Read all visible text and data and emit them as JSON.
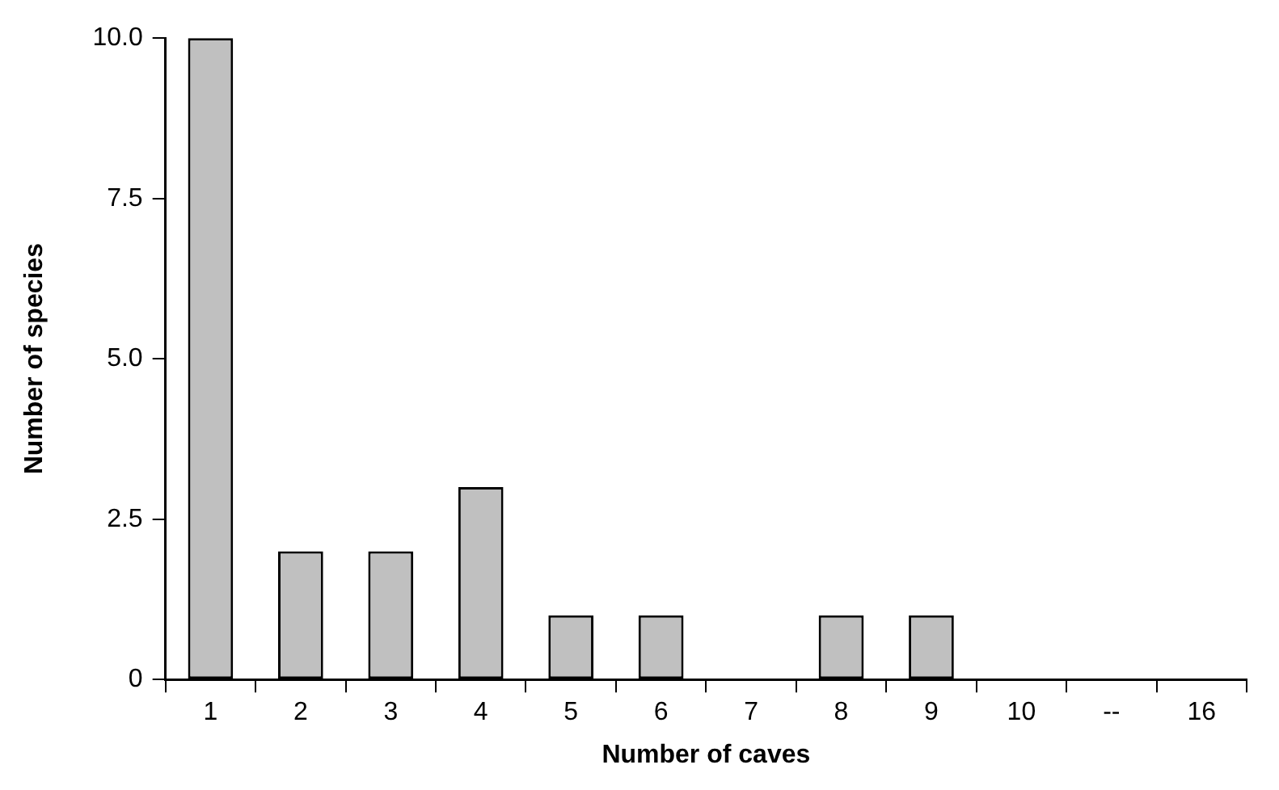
{
  "chart_data": {
    "type": "bar",
    "xlabel": "Number of caves",
    "ylabel": "Number of species",
    "categories": [
      "1",
      "2",
      "3",
      "4",
      "5",
      "6",
      "7",
      "8",
      "9",
      "10",
      "--",
      "16"
    ],
    "values": [
      10,
      2,
      2,
      3,
      1,
      1,
      0,
      1,
      1,
      0,
      0,
      0
    ],
    "color": "#c0c0c0",
    "ylim": [
      0,
      10
    ],
    "yticks": [
      0,
      {
        "value": 2.5,
        "label": "2.5"
      },
      {
        "value": 5,
        "label": "5.0"
      },
      {
        "value": 7.5,
        "label": "7.5"
      },
      {
        "value": 10,
        "label": "10.0"
      }
    ],
    "grid": false,
    "legend": false
  }
}
